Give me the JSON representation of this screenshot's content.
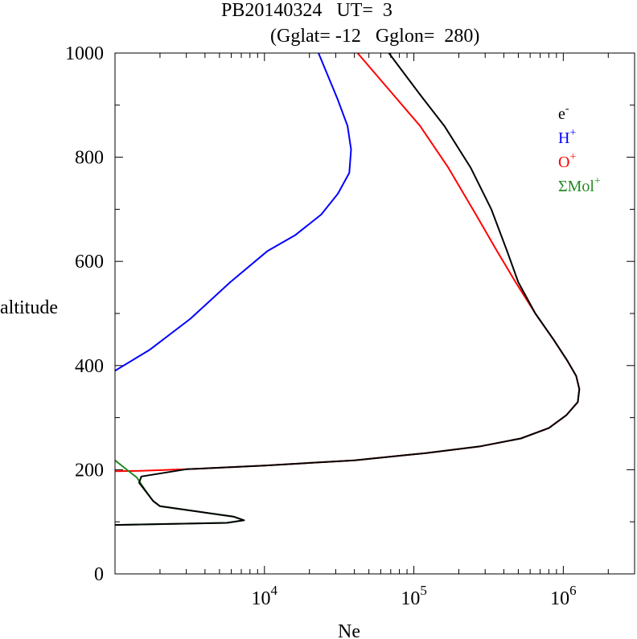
{
  "chart_data": {
    "type": "line",
    "title_line1": "PB20140324   UT=  3",
    "title_line2": "(Gglat= -12   Gglon=  280)",
    "xlabel": "Ne",
    "ylabel": "altitude",
    "x_scale": "log",
    "xlim": [
      1000,
      3000000
    ],
    "ylim": [
      0,
      1000
    ],
    "x_ticks": [
      {
        "value": 10000,
        "base": "10",
        "exp": "4"
      },
      {
        "value": 100000,
        "base": "10",
        "exp": "5"
      },
      {
        "value": 1000000,
        "base": "10",
        "exp": "6"
      }
    ],
    "y_ticks": [
      {
        "value": 0,
        "label": "0"
      },
      {
        "value": 200,
        "label": "200"
      },
      {
        "value": 400,
        "label": "400"
      },
      {
        "value": 600,
        "label": "600"
      },
      {
        "value": 800,
        "label": "800"
      },
      {
        "value": 1000,
        "label": "1000"
      }
    ],
    "legend_position": "top-right",
    "series": [
      {
        "name": "H+",
        "legend_base": "H",
        "legend_sup": "+",
        "color": "#0000ff",
        "points": [
          [
            1000,
            390
          ],
          [
            1700,
            430
          ],
          [
            3200,
            490
          ],
          [
            5900,
            560
          ],
          [
            10500,
            620
          ],
          [
            16000,
            650
          ],
          [
            24000,
            690
          ],
          [
            31000,
            730
          ],
          [
            37000,
            770
          ],
          [
            38000,
            815
          ],
          [
            36000,
            860
          ],
          [
            31000,
            910
          ],
          [
            23000,
            1000
          ]
        ]
      },
      {
        "name": "O+",
        "legend_base": "O",
        "legend_sup": "+",
        "color": "#ff0000",
        "points": [
          [
            1000,
            197
          ],
          [
            1500,
            198
          ],
          [
            3000,
            201
          ],
          [
            10000,
            208
          ],
          [
            40000,
            218
          ],
          [
            120000,
            232
          ],
          [
            280000,
            245
          ],
          [
            520000,
            260
          ],
          [
            800000,
            280
          ],
          [
            1050000,
            305
          ],
          [
            1250000,
            330
          ],
          [
            1280000,
            355
          ],
          [
            1220000,
            380
          ],
          [
            1060000,
            410
          ],
          [
            860000,
            450
          ],
          [
            650000,
            500
          ],
          [
            480000,
            560
          ],
          [
            360000,
            620
          ],
          [
            260000,
            690
          ],
          [
            170000,
            780
          ],
          [
            110000,
            860
          ],
          [
            68000,
            930
          ],
          [
            42000,
            1000
          ]
        ]
      },
      {
        "name": "ΣMol+",
        "legend_base": "ΣMol",
        "legend_sup": "+",
        "color": "#228b22",
        "points": [
          [
            1000,
            218
          ],
          [
            1200,
            200
          ],
          [
            1400,
            185
          ],
          [
            1600,
            160
          ],
          [
            1800,
            140
          ],
          [
            2000,
            130
          ],
          [
            6200,
            110
          ],
          [
            7300,
            103
          ],
          [
            5600,
            98
          ],
          [
            1000,
            94
          ]
        ]
      },
      {
        "name": "e-",
        "legend_base": "e",
        "legend_sup": "-",
        "color": "#000000",
        "points": [
          [
            1000,
            94
          ],
          [
            5600,
            98
          ],
          [
            7300,
            103
          ],
          [
            6200,
            110
          ],
          [
            2000,
            130
          ],
          [
            1800,
            140
          ],
          [
            1450,
            175
          ],
          [
            1500,
            187
          ],
          [
            3000,
            201
          ],
          [
            10000,
            208
          ],
          [
            40000,
            218
          ],
          [
            120000,
            232
          ],
          [
            280000,
            245
          ],
          [
            520000,
            260
          ],
          [
            800000,
            280
          ],
          [
            1050000,
            305
          ],
          [
            1250000,
            330
          ],
          [
            1280000,
            355
          ],
          [
            1220000,
            380
          ],
          [
            1060000,
            410
          ],
          [
            860000,
            450
          ],
          [
            650000,
            500
          ],
          [
            500000,
            560
          ],
          [
            420000,
            620
          ],
          [
            330000,
            700
          ],
          [
            240000,
            780
          ],
          [
            160000,
            860
          ],
          [
            110000,
            920
          ],
          [
            68000,
            1000
          ]
        ]
      }
    ]
  }
}
